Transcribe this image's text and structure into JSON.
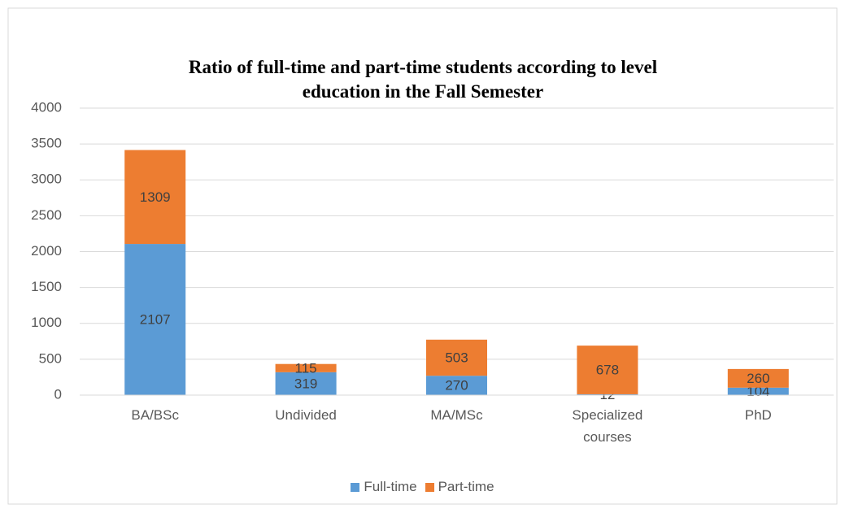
{
  "chart_data": {
    "type": "stacked_bar",
    "title": "Ratio of full-time and part-time students according to level education in the Fall Semester",
    "categories": [
      "BA/BSc",
      "Undivided",
      "MA/MSc",
      "Specialized courses",
      "PhD"
    ],
    "series": [
      {
        "name": "Full-time",
        "color": "#5b9bd5",
        "values": [
          2107,
          319,
          270,
          12,
          104
        ]
      },
      {
        "name": "Part-time",
        "color": "#ed7d31",
        "values": [
          1309,
          115,
          503,
          678,
          260
        ]
      }
    ],
    "ylim": [
      0,
      4000
    ],
    "yticks": [
      0,
      500,
      1000,
      1500,
      2000,
      2500,
      3000,
      3500,
      4000
    ],
    "grid": true,
    "legend": "bottom"
  }
}
